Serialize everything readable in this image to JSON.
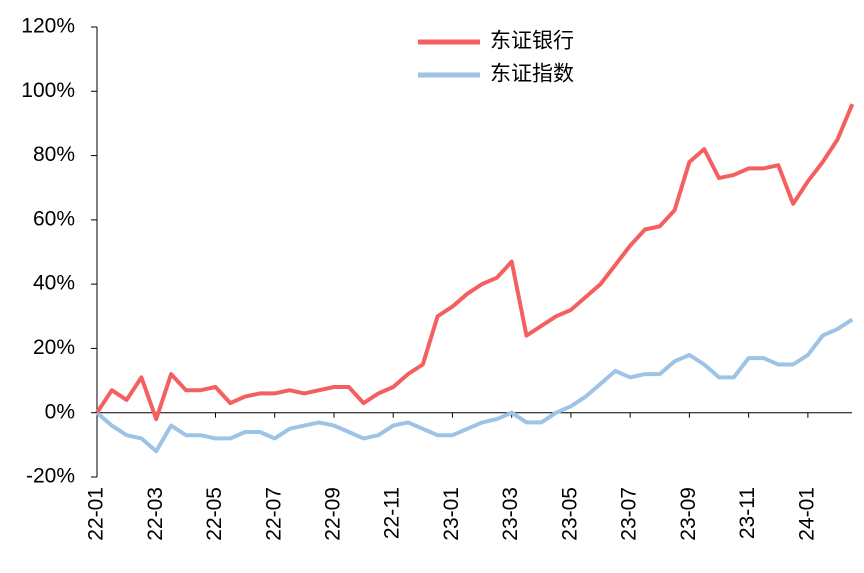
{
  "chart_data": {
    "type": "line",
    "categories": [
      "22-01",
      null,
      null,
      null,
      "22-03",
      null,
      null,
      null,
      "22-05",
      null,
      null,
      null,
      "22-07",
      null,
      null,
      null,
      "22-09",
      null,
      null,
      null,
      "22-11",
      null,
      null,
      null,
      "23-01",
      null,
      null,
      null,
      "23-03",
      null,
      null,
      null,
      "23-05",
      null,
      null,
      null,
      "23-07",
      null,
      null,
      null,
      "23-09",
      null,
      null,
      null,
      "23-11",
      null,
      null,
      null,
      "24-01",
      null,
      null,
      null
    ],
    "series": [
      {
        "name": "东证银行",
        "color": "#f4605f",
        "values": [
          0,
          7,
          4,
          11,
          -2,
          12,
          7,
          7,
          8,
          3,
          5,
          6,
          6,
          7,
          6,
          7,
          8,
          8,
          3,
          6,
          8,
          12,
          15,
          30,
          33,
          37,
          40,
          42,
          47,
          24,
          27,
          30,
          32,
          36,
          40,
          46,
          52,
          57,
          58,
          63,
          78,
          82,
          73,
          74,
          76,
          76,
          77,
          65,
          72,
          78,
          85,
          96
        ]
      },
      {
        "name": "东证指数",
        "color": "#9dc3e6",
        "values": [
          0,
          -4,
          -7,
          -8,
          -12,
          -4,
          -7,
          -7,
          -8,
          -8,
          -6,
          -6,
          -8,
          -5,
          -4,
          -3,
          -4,
          -6,
          -8,
          -7,
          -4,
          -3,
          -5,
          -7,
          -7,
          -5,
          -3,
          -2,
          0,
          -3,
          -3,
          0,
          2,
          5,
          9,
          13,
          11,
          12,
          12,
          16,
          18,
          15,
          11,
          11,
          17,
          17,
          15,
          15,
          18,
          24,
          26,
          29
        ]
      }
    ],
    "ylim": [
      -20,
      120
    ],
    "yticks": [
      {
        "value": -20,
        "label": "-20%"
      },
      {
        "value": 0,
        "label": "0%"
      },
      {
        "value": 20,
        "label": "20%"
      },
      {
        "value": 40,
        "label": "40%"
      },
      {
        "value": 60,
        "label": "60%"
      },
      {
        "value": 80,
        "label": "80%"
      },
      {
        "value": 100,
        "label": "100%"
      },
      {
        "value": 120,
        "label": "120%"
      }
    ],
    "legend": "top-center"
  }
}
